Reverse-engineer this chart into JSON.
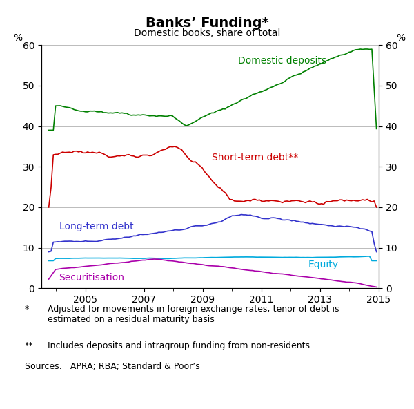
{
  "title": "Banks’ Funding*",
  "subtitle": "Domestic books, share of total",
  "ylabel_left": "%",
  "ylabel_right": "%",
  "ylim": [
    0,
    60
  ],
  "yticks": [
    0,
    10,
    20,
    30,
    40,
    50,
    60
  ],
  "xlim_start": 2003.5,
  "xlim_end": 2015.0,
  "xticks": [
    2005,
    2007,
    2009,
    2011,
    2013,
    2015
  ],
  "footnote1_star": "*",
  "footnote1": "Adjusted for movements in foreign exchange rates; tenor of debt is\nestimated on a residual maturity basis",
  "footnote2_star": "**",
  "footnote2": "Includes deposits and intragroup funding from non-residents",
  "sources": "Sources:   APRA; RBA; Standard & Poor’s",
  "line_colors": {
    "domestic_deposits": "#008000",
    "short_term_debt": "#cc0000",
    "long_term_debt": "#3333cc",
    "equity": "#00aadd",
    "securitisation": "#aa00aa"
  },
  "line_labels": {
    "domestic_deposits": "Domestic deposits",
    "short_term_debt": "Short-term debt**",
    "long_term_debt": "Long-term debt",
    "equity": "Equity",
    "securitisation": "Securitisation"
  },
  "background_color": "#ffffff",
  "grid_color": "#bbbbbb",
  "title_fontsize": 14,
  "subtitle_fontsize": 10,
  "label_fontsize": 10,
  "tick_fontsize": 10,
  "footnote_fontsize": 9,
  "annotation_fontsize": 10
}
